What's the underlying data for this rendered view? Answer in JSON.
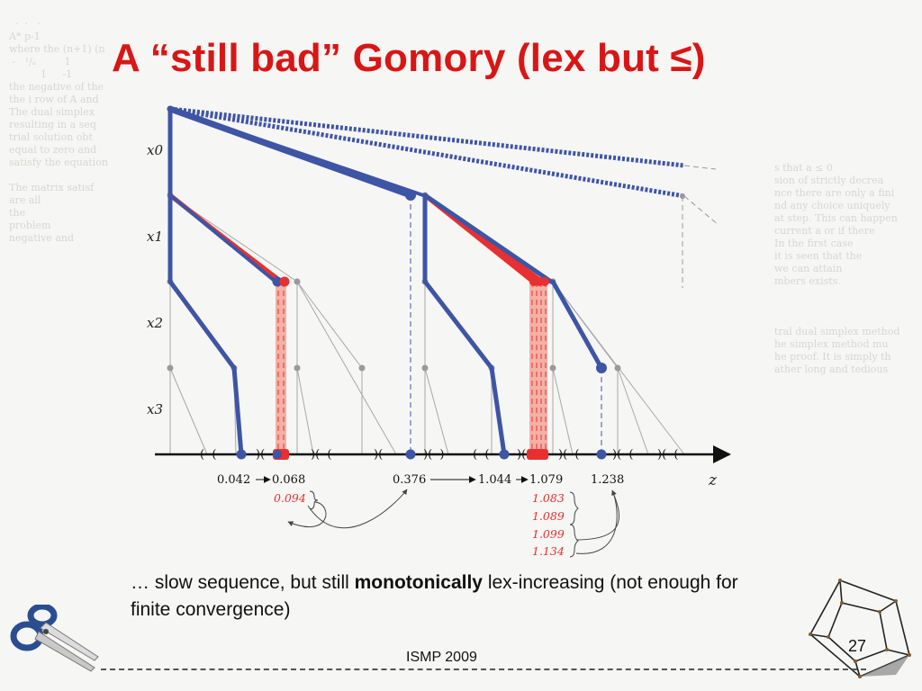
{
  "slide": {
    "title": "A “still bad” Gomory (lex but ≤)",
    "caption_prefix": "… slow sequence, but still ",
    "caption_bold": "monotonically",
    "caption_suffix": " lex-increasing (not enough for finite convergence)",
    "footer": "ISMP 2009",
    "page_number": "27",
    "icons": [
      "scissors-icon",
      "hypercube-icon"
    ]
  },
  "diagram": {
    "level_labels": [
      "x0",
      "x1",
      "x2",
      "x3"
    ],
    "axis_label": "z",
    "black_values": [
      "0.042",
      "0.068",
      "0.376",
      "1.044",
      "1.079",
      "1.238"
    ],
    "red_values": [
      "0.094",
      "1.083",
      "1.089",
      "1.099",
      "1.134"
    ],
    "colors": {
      "blue": "#3e55a6",
      "red": "#e83030",
      "title_red": "#d81616",
      "gray": "#9a9a9a"
    }
  }
}
